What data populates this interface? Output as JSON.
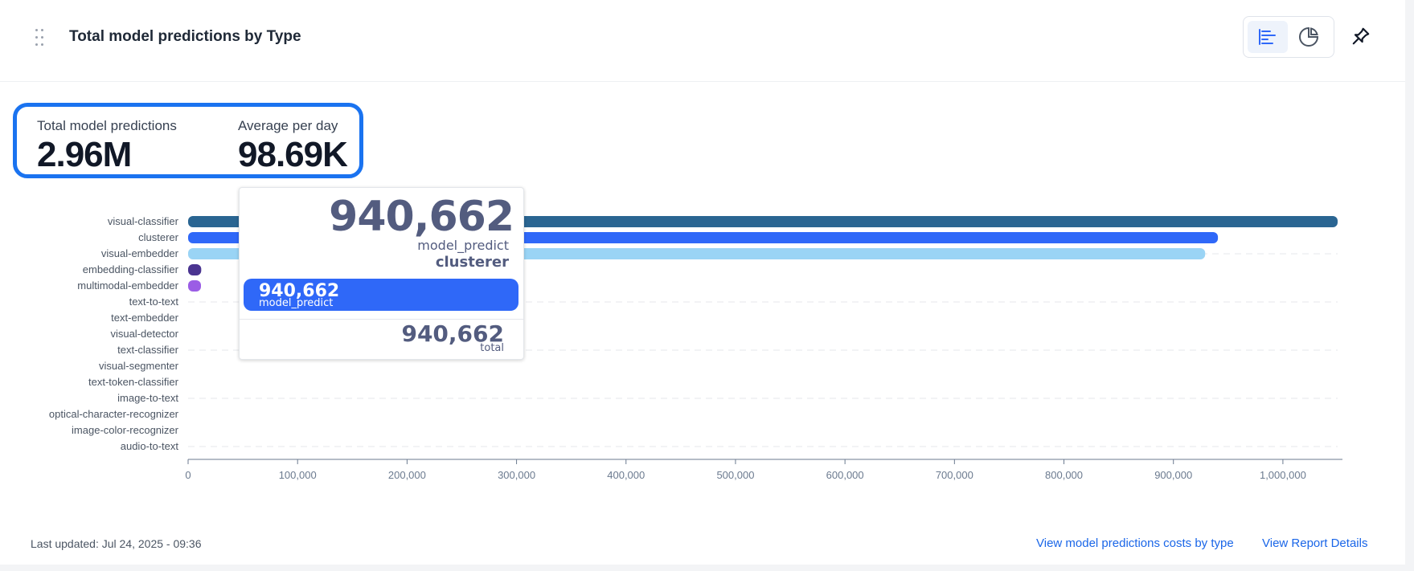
{
  "header": {
    "title": "Total model predictions by Type"
  },
  "stats": {
    "total": {
      "label": "Total model predictions",
      "value": "2.96M"
    },
    "average": {
      "label": "Average per day",
      "value": "98.69K"
    }
  },
  "chart_data": {
    "type": "bar",
    "orientation": "horizontal",
    "categories": [
      "visual-classifier",
      "clusterer",
      "visual-embedder",
      "embedding-classifier",
      "multimodal-embedder",
      "text-to-text",
      "text-embedder",
      "visual-detector",
      "text-classifier",
      "visual-segmenter",
      "text-token-classifier",
      "image-to-text",
      "optical-character-recognizer",
      "image-color-recognizer",
      "audio-to-text"
    ],
    "series": [
      {
        "name": "model_predict",
        "values": [
          1050000,
          940662,
          929000,
          12000,
          8000,
          0,
          0,
          0,
          0,
          0,
          0,
          0,
          0,
          0,
          0
        ]
      }
    ],
    "colors": [
      "#2a6592",
      "#2f68f8",
      "#9ad4f5",
      "#4a3490",
      "#9b5de5"
    ],
    "xlim": [
      0,
      1050000
    ],
    "xticks": [
      0,
      100000,
      200000,
      300000,
      400000,
      500000,
      600000,
      700000,
      800000,
      900000,
      1000000
    ],
    "xtick_labels": [
      "0",
      "100,000",
      "200,000",
      "300,000",
      "400,000",
      "500,000",
      "600,000",
      "700,000",
      "800,000",
      "900,000",
      "1,000,000"
    ],
    "grid": "horizontal dashed",
    "legend": "none",
    "tooltip": {
      "category": "clusterer",
      "value": "940,662",
      "series": "model_predict",
      "total_value": "940,662",
      "total_label": "total"
    }
  },
  "footer": {
    "last_updated": "Last updated: Jul 24, 2025 - 09:36",
    "link_costs": "View model predictions costs by type",
    "link_details": "View Report Details"
  },
  "icons": {
    "drag": "drag-handle-icon",
    "bar_toggle": "bar-chart-icon",
    "pie_toggle": "pie-chart-icon",
    "pin": "pin-icon"
  }
}
